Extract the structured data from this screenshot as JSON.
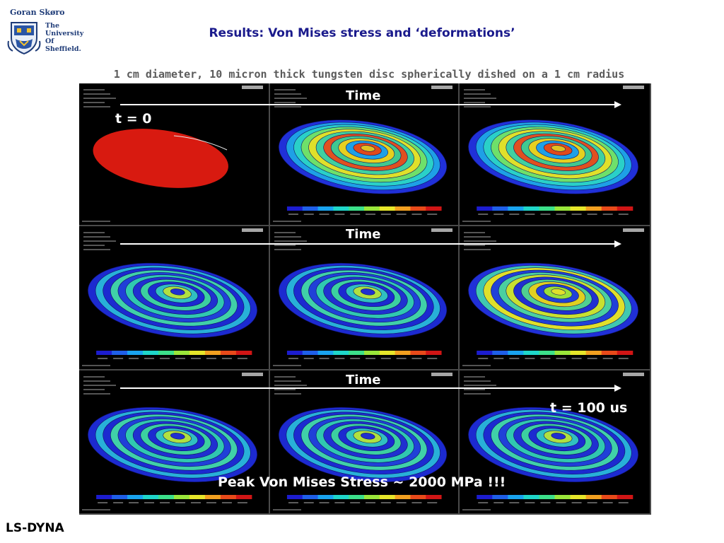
{
  "header": {
    "author": "Goran Skøro",
    "university_lines": [
      "The",
      "University",
      "Of",
      "Sheffield."
    ]
  },
  "slide": {
    "title": "Results: Von Mises stress and ‘deformations’",
    "subtitle": "1 cm diameter, 10 micron thick tungsten disc spherically dished on a 1 cm radius"
  },
  "overlays": {
    "time_label": "Time",
    "t_start": "t = 0",
    "t_end": "t = 100 us",
    "peak_stress": "Peak Von Mises Stress ~ 2000 MPa !!!"
  },
  "footer": {
    "software": "LS-DYNA"
  },
  "colors": {
    "title": "#1a1a8c",
    "subtitle": "#5b5b5b",
    "logo_blue": "#1f3c78",
    "panel_background": "#000000",
    "colorbar": [
      "#1c1ccf",
      "#1f5fe8",
      "#19a3ef",
      "#1fd6c9",
      "#3ce08a",
      "#9ae63a",
      "#e6e62a",
      "#f2a020",
      "#e84a1a",
      "#d01515"
    ]
  },
  "panels": [
    {
      "row": 0,
      "col": 0,
      "kind": "flat-red"
    },
    {
      "row": 0,
      "col": 1,
      "kind": "rings-warm"
    },
    {
      "row": 0,
      "col": 2,
      "kind": "rings-warm"
    },
    {
      "row": 1,
      "col": 0,
      "kind": "rings-cool"
    },
    {
      "row": 1,
      "col": 1,
      "kind": "rings-cool"
    },
    {
      "row": 1,
      "col": 2,
      "kind": "rings-yellow"
    },
    {
      "row": 2,
      "col": 0,
      "kind": "rings-cool"
    },
    {
      "row": 2,
      "col": 1,
      "kind": "rings-cool"
    },
    {
      "row": 2,
      "col": 2,
      "kind": "rings-cool"
    }
  ]
}
